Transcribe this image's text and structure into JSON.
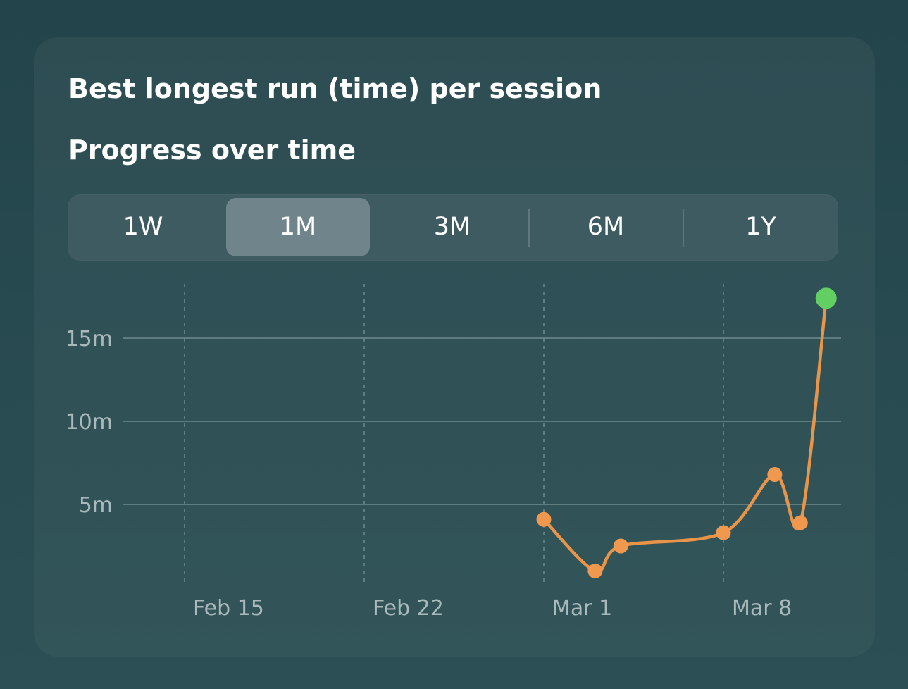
{
  "card": {
    "title": "Best longest run (time) per session",
    "subtitle": "Progress over time"
  },
  "range_selector": {
    "options": [
      "1W",
      "1M",
      "3M",
      "6M",
      "1Y"
    ],
    "selected": "1M"
  },
  "colors": {
    "line": "#e8954a",
    "point": "#f0994e",
    "latest_point": "#62cf63",
    "gridline": "#6e8b8f",
    "tick_label": "#a9b9bc"
  },
  "chart_data": {
    "type": "line",
    "y_unit": "minutes",
    "x_ticks": [
      "Feb 15",
      "Feb 22",
      "Mar 1",
      "Mar 8"
    ],
    "y_ticks": [
      "5m",
      "10m",
      "15m"
    ],
    "ylim": [
      0,
      18
    ],
    "grid": {
      "horizontal": "solid",
      "vertical": "dashed"
    },
    "points": [
      {
        "x": "Feb 29",
        "y": 4.1
      },
      {
        "x": "Mar 2",
        "y": 1.0
      },
      {
        "x": "Mar 3",
        "y": 2.5
      },
      {
        "x": "Mar 7",
        "y": 3.3
      },
      {
        "x": "Mar 9",
        "y": 6.8
      },
      {
        "x": "Mar 10",
        "y": 3.9
      },
      {
        "x": "Mar 11",
        "y": 17.4
      }
    ],
    "highlight_last_point": true
  }
}
